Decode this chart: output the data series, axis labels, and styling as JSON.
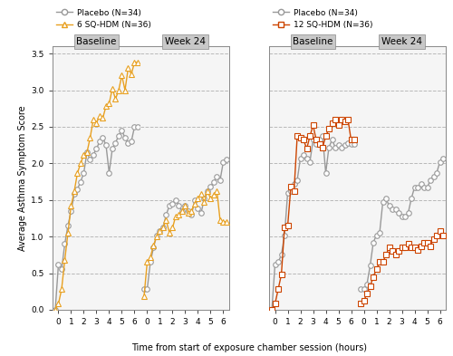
{
  "left_panel": {
    "placebo_label": "Placebo (N=34)",
    "treatment_label": "6 SQ-HDM (N=36)",
    "placebo_color": "#999999",
    "treatment_color": "#E8A020",
    "treat_marker": "^",
    "placebo_baseline_x": [
      -0.25,
      0,
      0.25,
      0.5,
      0.75,
      1.0,
      1.25,
      1.5,
      1.75,
      2.0,
      2.25,
      2.5,
      2.75,
      3.0,
      3.25,
      3.5,
      3.75,
      4.0,
      4.25,
      4.5,
      4.75,
      5.0,
      5.25,
      5.5,
      5.75,
      6.0,
      6.25
    ],
    "placebo_baseline_y": [
      0.0,
      0.62,
      0.55,
      0.9,
      1.15,
      1.35,
      1.58,
      1.65,
      1.75,
      1.87,
      2.15,
      2.05,
      2.12,
      2.2,
      2.3,
      2.35,
      2.25,
      1.87,
      2.2,
      2.28,
      2.38,
      2.45,
      2.35,
      2.28,
      2.3,
      2.5,
      2.5
    ],
    "treatment_baseline_x": [
      -0.25,
      0,
      0.25,
      0.5,
      0.75,
      1.0,
      1.25,
      1.5,
      1.75,
      2.0,
      2.25,
      2.5,
      2.75,
      3.0,
      3.25,
      3.5,
      3.75,
      4.0,
      4.25,
      4.5,
      4.75,
      5.0,
      5.25,
      5.5,
      5.75,
      6.0,
      6.25
    ],
    "treatment_baseline_y": [
      0.0,
      0.08,
      0.28,
      0.68,
      1.05,
      1.42,
      1.62,
      1.87,
      2.0,
      2.12,
      2.15,
      2.35,
      2.6,
      2.55,
      2.65,
      2.62,
      2.78,
      2.82,
      3.02,
      2.88,
      3.0,
      3.2,
      3.0,
      3.3,
      3.22,
      3.38,
      3.38
    ],
    "placebo_week24_x": [
      -0.25,
      0,
      0.25,
      0.5,
      0.75,
      1.0,
      1.25,
      1.5,
      1.75,
      2.0,
      2.25,
      2.5,
      2.75,
      3.0,
      3.25,
      3.5,
      3.75,
      4.0,
      4.25,
      4.5,
      4.75,
      5.0,
      5.25,
      5.5,
      5.75,
      6.0,
      6.25
    ],
    "placebo_week24_y": [
      0.28,
      0.28,
      0.65,
      0.85,
      1.02,
      1.08,
      1.12,
      1.3,
      1.42,
      1.45,
      1.5,
      1.42,
      1.35,
      1.42,
      1.35,
      1.3,
      1.5,
      1.38,
      1.32,
      1.52,
      1.62,
      1.68,
      1.75,
      1.82,
      1.77,
      2.02,
      2.05
    ],
    "treatment_week24_x": [
      -0.25,
      0,
      0.25,
      0.5,
      0.75,
      1.0,
      1.25,
      1.5,
      1.75,
      2.0,
      2.25,
      2.5,
      2.75,
      3.0,
      3.25,
      3.5,
      3.75,
      4.0,
      4.25,
      4.5,
      4.75,
      5.0,
      5.25,
      5.5,
      5.75,
      6.0,
      6.25
    ],
    "treatment_week24_y": [
      0.18,
      0.65,
      0.72,
      0.88,
      1.0,
      1.07,
      1.12,
      1.22,
      1.05,
      1.12,
      1.28,
      1.3,
      1.35,
      1.42,
      1.32,
      1.35,
      1.45,
      1.52,
      1.58,
      1.47,
      1.62,
      1.52,
      1.57,
      1.62,
      1.22,
      1.2,
      1.2
    ]
  },
  "right_panel": {
    "placebo_label": "Placebo (N=34)",
    "treatment_label": "12 SQ-HDM (N=36)",
    "placebo_color": "#999999",
    "treatment_color": "#CC4400",
    "treat_marker": "s",
    "placebo_baseline_x": [
      -0.25,
      0,
      0.25,
      0.5,
      0.75,
      1.0,
      1.25,
      1.5,
      1.75,
      2.0,
      2.25,
      2.5,
      2.75,
      3.0,
      3.25,
      3.5,
      3.75,
      4.0,
      4.25,
      4.5,
      4.75,
      5.0,
      5.25,
      5.5,
      5.75,
      6.0,
      6.25
    ],
    "placebo_baseline_y": [
      0.0,
      0.62,
      0.65,
      0.75,
      1.02,
      1.6,
      1.62,
      1.72,
      1.77,
      2.07,
      2.12,
      2.07,
      2.02,
      2.32,
      2.27,
      2.32,
      2.37,
      1.87,
      2.22,
      2.32,
      2.22,
      2.25,
      2.22,
      2.25,
      2.28,
      2.27,
      2.27
    ],
    "treatment_baseline_x": [
      -0.25,
      0,
      0.25,
      0.5,
      0.75,
      1.0,
      1.25,
      1.5,
      1.75,
      2.0,
      2.25,
      2.5,
      2.75,
      3.0,
      3.25,
      3.5,
      3.75,
      4.0,
      4.25,
      4.5,
      4.75,
      5.0,
      5.25,
      5.5,
      5.75,
      6.0,
      6.25
    ],
    "treatment_baseline_y": [
      0.0,
      0.08,
      0.28,
      0.48,
      1.12,
      1.15,
      1.68,
      1.62,
      2.37,
      2.35,
      2.32,
      2.2,
      2.37,
      2.52,
      2.32,
      2.27,
      2.22,
      2.37,
      2.47,
      2.55,
      2.6,
      2.52,
      2.6,
      2.57,
      2.6,
      2.32,
      2.32
    ],
    "placebo_week24_x": [
      -0.25,
      0,
      0.25,
      0.5,
      0.75,
      1.0,
      1.25,
      1.5,
      1.75,
      2.0,
      2.25,
      2.5,
      2.75,
      3.0,
      3.25,
      3.5,
      3.75,
      4.0,
      4.25,
      4.5,
      4.75,
      5.0,
      5.25,
      5.5,
      5.75,
      6.0,
      6.25
    ],
    "placebo_week24_y": [
      0.28,
      0.28,
      0.35,
      0.6,
      0.92,
      1.02,
      1.05,
      1.47,
      1.52,
      1.42,
      1.37,
      1.37,
      1.32,
      1.27,
      1.27,
      1.32,
      1.52,
      1.67,
      1.67,
      1.72,
      1.67,
      1.67,
      1.77,
      1.82,
      1.87,
      2.02,
      2.07
    ],
    "treatment_week24_x": [
      -0.25,
      0,
      0.25,
      0.5,
      0.75,
      1.0,
      1.25,
      1.5,
      1.75,
      2.0,
      2.25,
      2.5,
      2.75,
      3.0,
      3.25,
      3.5,
      3.75,
      4.0,
      4.25,
      4.5,
      4.75,
      5.0,
      5.25,
      5.5,
      5.75,
      6.0,
      6.25
    ],
    "treatment_week24_y": [
      0.08,
      0.12,
      0.22,
      0.32,
      0.45,
      0.55,
      0.65,
      0.65,
      0.75,
      0.85,
      0.8,
      0.75,
      0.8,
      0.85,
      0.85,
      0.9,
      0.85,
      0.85,
      0.82,
      0.87,
      0.92,
      0.92,
      0.87,
      0.97,
      1.02,
      1.07,
      1.02
    ]
  },
  "ylabel": "Average Asthma Symptom Score",
  "xlabel": "Time from start of exposure chamber session (hours)",
  "ylim": [
    0,
    3.6
  ],
  "yticks": [
    0.0,
    0.5,
    1.0,
    1.5,
    2.0,
    2.5,
    3.0,
    3.5
  ],
  "yticklabels": [
    "0.0",
    "0.5",
    "1.0",
    "1.5",
    "2.0",
    "2.5",
    "3.0",
    "3.5"
  ],
  "xticks": [
    0,
    1,
    2,
    3,
    4,
    5,
    6
  ],
  "xlim_base": [
    -0.5,
    6.5
  ],
  "xlim_week": [
    -0.5,
    6.5
  ],
  "header_bg": "#c8c8c8",
  "plot_bg": "#f5f5f5",
  "grid_color": "#aaaaaa",
  "border_color": "#888888",
  "marker_size": 4,
  "line_width": 1.0
}
